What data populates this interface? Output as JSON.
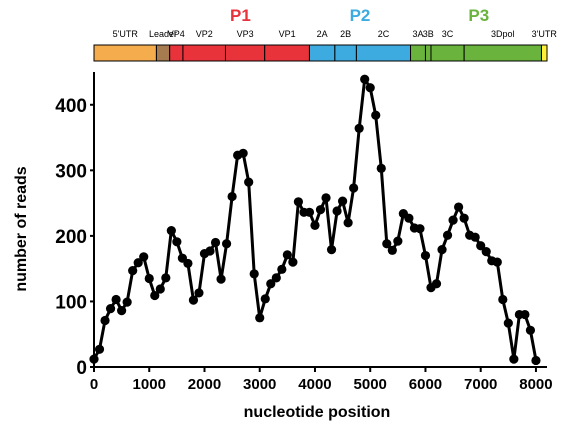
{
  "chart_data": {
    "type": "line",
    "xlabel": "nucleotide position",
    "ylabel": "number of reads",
    "xlim": [
      0,
      8200
    ],
    "ylim": [
      0,
      450
    ],
    "xticks": [
      0,
      1000,
      2000,
      3000,
      4000,
      5000,
      6000,
      7000,
      8000
    ],
    "yticks": [
      0,
      100,
      200,
      300,
      400
    ],
    "grid": false,
    "line_color": "#000000",
    "series": [
      {
        "x": [
          0,
          100,
          200,
          300,
          400,
          500,
          600,
          700,
          800,
          900,
          1000,
          1100,
          1200,
          1300,
          1400,
          1500,
          1600,
          1700,
          1800,
          1900,
          2000,
          2100,
          2200,
          2300,
          2400,
          2500,
          2600,
          2700,
          2800,
          2900,
          3000,
          3100,
          3200,
          3300,
          3400,
          3500,
          3600,
          3700,
          3800,
          3900,
          4000,
          4100,
          4200,
          4300,
          4400,
          4500,
          4600,
          4700,
          4800,
          4900,
          5000,
          5100,
          5200,
          5300,
          5400,
          5500,
          5600,
          5700,
          5800,
          5900,
          6000,
          6100,
          6200,
          6300,
          6400,
          6500,
          6600,
          6700,
          6800,
          6900,
          7000,
          7100,
          7200,
          7300,
          7400,
          7500,
          7600,
          7700,
          7800,
          7900,
          8000
        ],
        "values": [
          12,
          27,
          71,
          89,
          103,
          86,
          99,
          147,
          159,
          168,
          135,
          109,
          119,
          136,
          208,
          191,
          166,
          158,
          102,
          113,
          173,
          177,
          190,
          134,
          188,
          260,
          323,
          326,
          282,
          142,
          75,
          104,
          127,
          136,
          149,
          171,
          160,
          252,
          236,
          236,
          216,
          240,
          258,
          179,
          238,
          253,
          220,
          273,
          364,
          439,
          426,
          384,
          303,
          188,
          178,
          192,
          234,
          227,
          212,
          211,
          170,
          121,
          127,
          179,
          201,
          224,
          244,
          227,
          201,
          198,
          185,
          176,
          162,
          160,
          103,
          67,
          12,
          80,
          80,
          56,
          10
        ]
      }
    ]
  },
  "genome_map": {
    "groups": [
      {
        "label": "P1",
        "color": "#e8333a",
        "from": 1400,
        "to": 3900
      },
      {
        "label": "P2",
        "color": "#3eabe0",
        "from": 3900,
        "to": 5730
      },
      {
        "label": "P3",
        "color": "#6ab43e",
        "from": 5730,
        "to": 8200
      }
    ],
    "regions": [
      {
        "label": "5'UTR",
        "color": "#f5ac4d",
        "from": 0,
        "to": 1130
      },
      {
        "label": "Leader",
        "color": "#a67b50",
        "from": 1130,
        "to": 1370
      },
      {
        "label": "VP4",
        "color": "#e8333a",
        "from": 1370,
        "to": 1610
      },
      {
        "label": "VP2",
        "color": "#e8333a",
        "from": 1610,
        "to": 2380
      },
      {
        "label": "VP3",
        "color": "#e8333a",
        "from": 2380,
        "to": 3090
      },
      {
        "label": "VP1",
        "color": "#e8333a",
        "from": 3090,
        "to": 3900
      },
      {
        "label": "2A",
        "color": "#3eabe0",
        "from": 3900,
        "to": 4360
      },
      {
        "label": "2B",
        "color": "#3eabe0",
        "from": 4360,
        "to": 4750
      },
      {
        "label": "2C",
        "color": "#3eabe0",
        "from": 4750,
        "to": 5730
      },
      {
        "label": "3A",
        "color": "#6ab43e",
        "from": 5730,
        "to": 6000
      },
      {
        "label": "3B",
        "color": "#6ab43e",
        "from": 6000,
        "to": 6100
      },
      {
        "label": "3C",
        "color": "#6ab43e",
        "from": 6100,
        "to": 6700
      },
      {
        "label": "3Dpol",
        "color": "#6ab43e",
        "from": 6700,
        "to": 8100
      },
      {
        "label": "3'UTR",
        "color": "#ffef3a",
        "from": 8100,
        "to": 8200
      }
    ]
  }
}
